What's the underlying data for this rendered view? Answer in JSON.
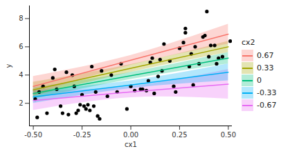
{
  "chart_data": {
    "type": "scatter",
    "x_label": "cx1",
    "y_label": "y",
    "legend_title": "cx2",
    "legend": "right",
    "grid": false,
    "xlim": [
      -0.52,
      0.52
    ],
    "ylim": [
      0.4,
      8.9
    ],
    "xticks": [
      {
        "value": -0.5,
        "label": "-0.50"
      },
      {
        "value": -0.25,
        "label": "-0.25"
      },
      {
        "value": 0,
        "label": "0.00"
      },
      {
        "value": 0.25,
        "label": "0.25"
      },
      {
        "value": 0.5,
        "label": "0.50"
      }
    ],
    "yticks": [
      2,
      4,
      6,
      8
    ],
    "points": {
      "color": "#000000",
      "marker": "circle",
      "x": [
        -0.49,
        -0.48,
        -0.47,
        -0.45,
        -0.43,
        -0.4,
        -0.39,
        -0.38,
        -0.36,
        -0.35,
        -0.33,
        -0.32,
        -0.3,
        -0.29,
        -0.28,
        -0.27,
        -0.26,
        -0.25,
        -0.24,
        -0.23,
        -0.22,
        -0.21,
        -0.2,
        -0.19,
        -0.18,
        -0.17,
        -0.16,
        -0.15,
        -0.12,
        -0.1,
        -0.07,
        -0.05,
        -0.02,
        0.0,
        0.02,
        0.05,
        0.06,
        0.08,
        0.09,
        0.1,
        0.11,
        0.12,
        0.14,
        0.15,
        0.16,
        0.17,
        0.2,
        0.22,
        0.23,
        0.25,
        0.27,
        0.28,
        0.28,
        0.3,
        0.31,
        0.32,
        0.33,
        0.35,
        0.37,
        0.38,
        0.39,
        0.4,
        0.41,
        0.43,
        0.44,
        0.45,
        0.47,
        0.51
      ],
      "y": [
        2.3,
        1.0,
        2.8,
        3.2,
        1.3,
        3.8,
        4.4,
        3.0,
        1.8,
        1.3,
        4.2,
        1.2,
        4.0,
        3.2,
        1.3,
        1.5,
        1.9,
        2.6,
        1.8,
        1.6,
        1.9,
        1.5,
        4.6,
        1.8,
        2.8,
        1.1,
        0.9,
        4.3,
        2.5,
        4.0,
        2.8,
        4.8,
        1.6,
        3.2,
        2.9,
        3.0,
        3.0,
        2.9,
        3.6,
        4.9,
        5.2,
        2.7,
        3.9,
        5.1,
        4.3,
        6.2,
        5.0,
        3.2,
        2.8,
        5.9,
        6.3,
        7.3,
        7.0,
        4.6,
        5.5,
        3.3,
        6.0,
        4.8,
        6.7,
        6.8,
        8.5,
        5.3,
        6.1,
        6.1,
        4.8,
        5.2,
        5.3,
        6.4
      ]
    },
    "series": [
      {
        "name": "0.67",
        "color": "#F8766D",
        "type": "line",
        "x": [
          -0.5,
          0,
          0.5
        ],
        "values": [
          3.2,
          5.05,
          6.9
        ],
        "lower": [
          2.6,
          4.7,
          6.2
        ],
        "upper": [
          3.9,
          5.4,
          7.6
        ]
      },
      {
        "name": "0.33",
        "color": "#A3A500",
        "type": "line",
        "x": [
          -0.5,
          0,
          0.5
        ],
        "values": [
          2.95,
          4.48,
          6.0
        ],
        "lower": [
          2.5,
          4.2,
          5.6
        ],
        "upper": [
          3.5,
          4.75,
          6.4
        ]
      },
      {
        "name": "0",
        "color": "#00BF7D",
        "type": "line",
        "x": [
          -0.5,
          0,
          0.5
        ],
        "values": [
          2.7,
          3.95,
          5.2
        ],
        "lower": [
          2.3,
          3.7,
          4.8
        ],
        "upper": [
          3.1,
          4.2,
          5.6
        ]
      },
      {
        "name": "-0.33",
        "color": "#00B0F6",
        "type": "line",
        "x": [
          -0.5,
          0,
          0.5
        ],
        "values": [
          2.45,
          3.3,
          4.2
        ],
        "lower": [
          2.0,
          3.05,
          3.6
        ],
        "upper": [
          2.9,
          3.6,
          4.8
        ]
      },
      {
        "name": "-0.67",
        "color": "#E76BF3",
        "type": "line",
        "x": [
          -0.5,
          0,
          0.5
        ],
        "values": [
          2.2,
          2.8,
          3.35
        ],
        "lower": [
          1.5,
          2.4,
          2.3
        ],
        "upper": [
          2.9,
          3.2,
          4.4
        ]
      }
    ]
  }
}
